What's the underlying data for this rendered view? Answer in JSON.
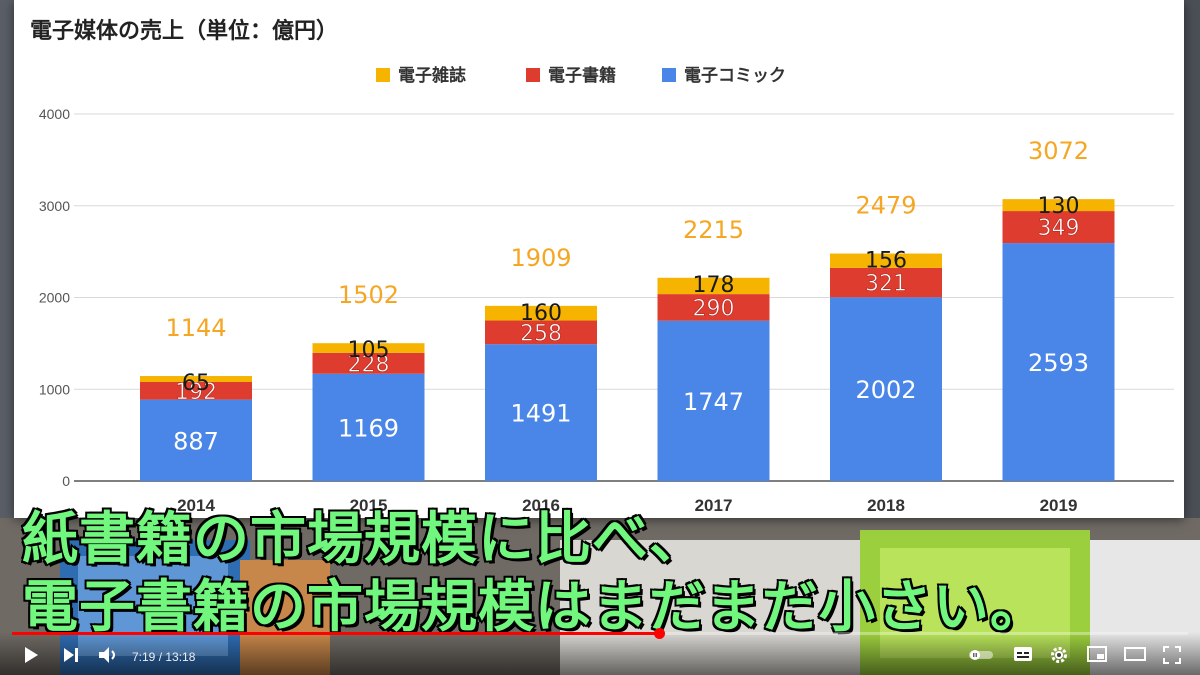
{
  "chart_data": {
    "type": "bar",
    "stacked": true,
    "title": "電子媒体の売上（単位：億円）",
    "categories": [
      "2014",
      "2015",
      "2016",
      "2017",
      "2018",
      "2019"
    ],
    "series": [
      {
        "name": "電子コミック",
        "color": "#4a86e8",
        "values": [
          887,
          1169,
          1491,
          1747,
          2002,
          2593
        ]
      },
      {
        "name": "電子書籍",
        "color": "#dd3c2f",
        "values": [
          192,
          228,
          258,
          290,
          321,
          349
        ]
      },
      {
        "name": "電子雑誌",
        "color": "#f6b400",
        "values": [
          65,
          105,
          160,
          178,
          156,
          130
        ]
      }
    ],
    "totals": [
      1144,
      1502,
      1909,
      2215,
      2479,
      3072
    ],
    "legend_order": [
      "電子雑誌",
      "電子書籍",
      "電子コミック"
    ],
    "legend_position": "top",
    "ylim": [
      0,
      4000
    ],
    "yticks": [
      0,
      1000,
      2000,
      3000,
      4000
    ],
    "grid": true,
    "total_label_color": "#f5a623"
  },
  "captions": {
    "line1": "紙書籍の市場規模に比べ、",
    "line2": "電子書籍の市場規模はまだまだ小さい。",
    "color": "#72f77e"
  },
  "player": {
    "current_time": "7:19",
    "separator": " / ",
    "duration": "13:18",
    "progress": 0.55,
    "progress_color": "#ff0000",
    "icons": [
      "play-icon",
      "next-icon",
      "volume-icon",
      "autoplay-toggle-icon",
      "subtitles-icon",
      "settings-icon",
      "miniplayer-icon",
      "theater-mode-icon",
      "fullscreen-icon"
    ]
  }
}
